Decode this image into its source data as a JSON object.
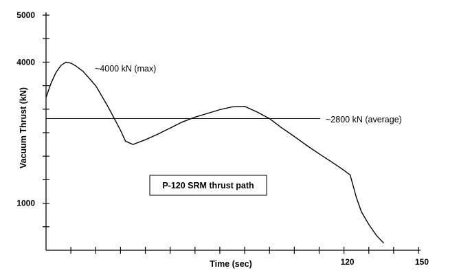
{
  "chart_data": {
    "type": "line",
    "title": "",
    "xlabel": "Time (sec)",
    "ylabel": "Vacuum Thrust (kN)",
    "xlim": [
      0,
      150
    ],
    "ylim": [
      0,
      5000
    ],
    "x_tick_labels": [
      {
        "value": 120,
        "label": "120"
      },
      {
        "value": 150,
        "label": "150"
      }
    ],
    "y_tick_labels": [
      {
        "value": 5000,
        "label": "5000"
      },
      {
        "value": 4000,
        "label": "4000"
      },
      {
        "value": 1000,
        "label": "1000"
      }
    ],
    "series": [
      {
        "points": [
          [
            0,
            3250
          ],
          [
            2,
            3550
          ],
          [
            4,
            3780
          ],
          [
            6,
            3930
          ],
          [
            8,
            4000
          ],
          [
            10,
            3980
          ],
          [
            12,
            3920
          ],
          [
            15,
            3800
          ],
          [
            20,
            3500
          ],
          [
            25,
            3050
          ],
          [
            30,
            2550
          ],
          [
            32,
            2320
          ],
          [
            35,
            2250
          ],
          [
            40,
            2350
          ],
          [
            45,
            2470
          ],
          [
            50,
            2600
          ],
          [
            55,
            2730
          ],
          [
            60,
            2830
          ],
          [
            65,
            2910
          ],
          [
            70,
            2990
          ],
          [
            75,
            3050
          ],
          [
            80,
            3060
          ],
          [
            85,
            2940
          ],
          [
            90,
            2800
          ],
          [
            95,
            2600
          ],
          [
            100,
            2420
          ],
          [
            105,
            2230
          ],
          [
            110,
            2050
          ],
          [
            115,
            1880
          ],
          [
            120,
            1700
          ],
          [
            122.5,
            1600
          ],
          [
            125,
            1120
          ],
          [
            127,
            820
          ],
          [
            130,
            550
          ],
          [
            133,
            320
          ],
          [
            136,
            150
          ]
        ]
      }
    ],
    "reference_line": {
      "y": 2800
    },
    "annotations": {
      "max_label": "~4000 kN (max)",
      "avg_label": "~2800 kN (average)",
      "box_label": "P-120 SRM thrust path"
    }
  }
}
